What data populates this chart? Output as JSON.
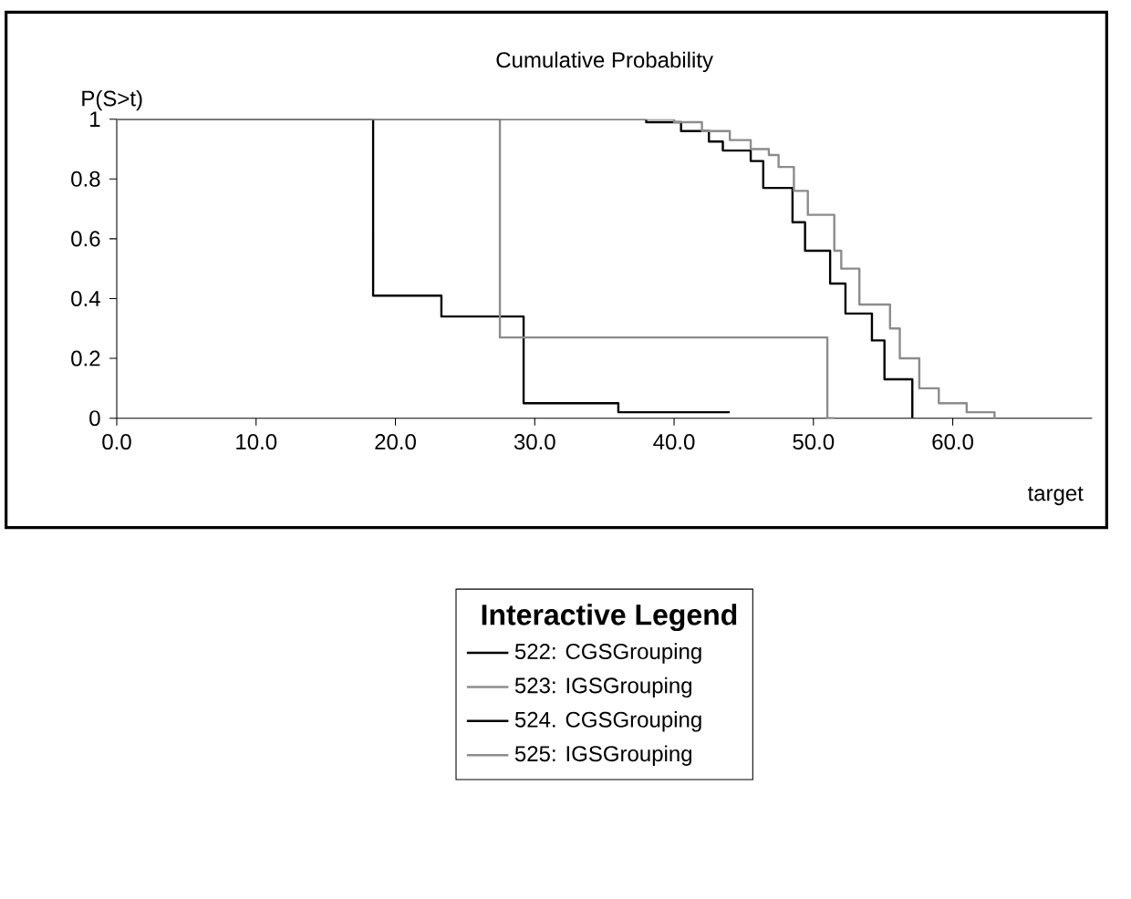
{
  "chart_data": {
    "type": "step",
    "title": "Cumulative Probability",
    "xlabel": "target",
    "ylabel": "P(S>t)",
    "legend_title": "Interactive Legend",
    "xlim": [
      0,
      70
    ],
    "ylim": [
      0,
      1
    ],
    "xticks": [
      {
        "value": 0,
        "label": "0.0"
      },
      {
        "value": 10,
        "label": "10.0"
      },
      {
        "value": 20,
        "label": "20.0"
      },
      {
        "value": 30,
        "label": "30.0"
      },
      {
        "value": 40,
        "label": "40.0"
      },
      {
        "value": 50,
        "label": "50.0"
      },
      {
        "value": 60,
        "label": "60.0"
      }
    ],
    "yticks": [
      0,
      0.2,
      0.4,
      0.6,
      0.8,
      1
    ],
    "legend": "bottom",
    "grid": false,
    "marker": "none",
    "line_style": "solid",
    "series": [
      {
        "name": "522: CGSGrouping",
        "color": "#000000",
        "x": [
          0,
          18.4,
          23.3,
          29.2,
          36,
          44
        ],
        "values": [
          1,
          0.41,
          0.34,
          0.05,
          0.02,
          0.02
        ]
      },
      {
        "name": "523: IGSGrouping",
        "color": "#8c8c8c",
        "x": [
          0,
          27.5,
          51,
          51.5
        ],
        "values": [
          1,
          0.27,
          0,
          0
        ]
      },
      {
        "name": "524. CGSGrouping",
        "color": "#000000",
        "x": [
          0,
          38,
          40.5,
          42.5,
          43.5,
          45.5,
          46.4,
          48.5,
          49.4,
          51.2,
          52.3,
          54.2,
          55.1,
          57.1
        ],
        "values": [
          1,
          0.99,
          0.96,
          0.925,
          0.895,
          0.86,
          0.77,
          0.655,
          0.56,
          0.45,
          0.35,
          0.26,
          0.13,
          0
        ]
      },
      {
        "name": "525: IGSGrouping",
        "color": "#8c8c8c",
        "x": [
          0,
          40,
          42,
          44,
          45.5,
          46.8,
          47.5,
          48.6,
          49.6,
          51.5,
          52,
          53.3,
          55.5,
          56.2,
          57.6,
          59,
          61,
          63
        ],
        "values": [
          1,
          0.99,
          0.96,
          0.93,
          0.9,
          0.88,
          0.84,
          0.76,
          0.68,
          0.56,
          0.5,
          0.38,
          0.3,
          0.2,
          0.1,
          0.05,
          0.02,
          0
        ]
      }
    ]
  }
}
